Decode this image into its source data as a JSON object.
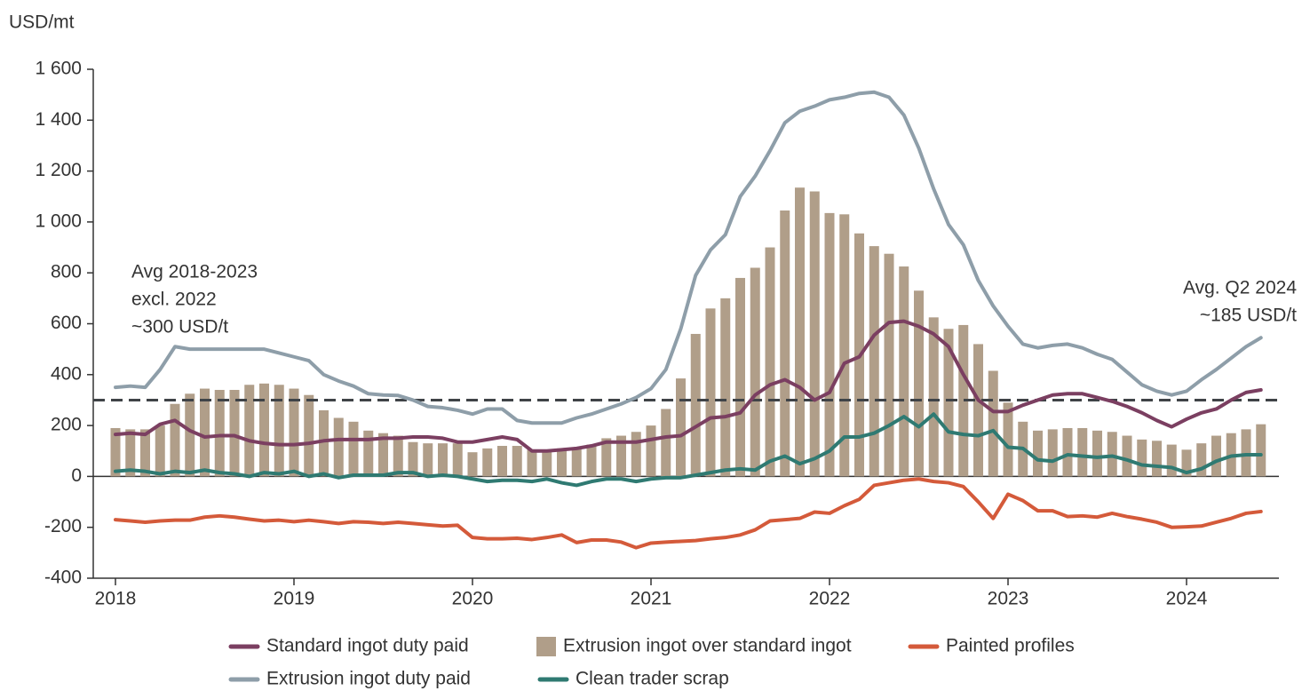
{
  "chart_data": {
    "type": "combo",
    "y_label": "USD/mt",
    "categories": [
      "2018",
      null,
      null,
      null,
      null,
      null,
      null,
      null,
      null,
      null,
      null,
      null,
      "2019",
      null,
      null,
      null,
      null,
      null,
      null,
      null,
      null,
      null,
      null,
      null,
      "2020",
      null,
      null,
      null,
      null,
      null,
      null,
      null,
      null,
      null,
      null,
      null,
      "2021",
      null,
      null,
      null,
      null,
      null,
      null,
      null,
      null,
      null,
      null,
      null,
      "2022",
      null,
      null,
      null,
      null,
      null,
      null,
      null,
      null,
      null,
      null,
      null,
      "2023",
      null,
      null,
      null,
      null,
      null,
      null,
      null,
      null,
      null,
      null,
      null,
      "2024",
      null,
      null,
      null,
      null,
      null
    ],
    "ylim": [
      -400,
      1600
    ],
    "yticks": [
      {
        "value": -400,
        "label": "-400"
      },
      -200,
      0,
      200,
      400,
      600,
      800,
      {
        "value": 1000,
        "label": "1 000"
      },
      {
        "value": 1200,
        "label": "1 200"
      },
      {
        "value": 1400,
        "label": "1 400"
      },
      {
        "value": 1600,
        "label": "1 600"
      }
    ],
    "reference_line": {
      "value": 300,
      "color": "#3f4347"
    },
    "annotations": [
      {
        "lines": [
          "Avg 2018-2023",
          "excl. 2022",
          "~300 USD/t"
        ]
      },
      {
        "lines": [
          "Avg. Q2 2024",
          "~185 USD/t"
        ]
      }
    ],
    "series": [
      {
        "name": "Standard ingot duty paid",
        "type": "line",
        "color": "#7b3f61",
        "values": [
          165,
          170,
          165,
          205,
          220,
          180,
          155,
          160,
          160,
          140,
          130,
          125,
          125,
          130,
          140,
          145,
          145,
          145,
          150,
          150,
          155,
          155,
          150,
          135,
          135,
          145,
          155,
          145,
          100,
          100,
          105,
          110,
          120,
          135,
          135,
          135,
          145,
          155,
          160,
          195,
          230,
          235,
          250,
          320,
          360,
          380,
          350,
          300,
          330,
          445,
          470,
          555,
          605,
          610,
          590,
          560,
          510,
          400,
          300,
          255,
          255,
          280,
          300,
          320,
          325,
          325,
          310,
          295,
          275,
          250,
          220,
          195,
          225,
          250,
          265,
          300,
          330,
          340
        ]
      },
      {
        "name": "Extrusion ingot over standard ingot",
        "type": "bar",
        "color": "#b09e89",
        "values": [
          190,
          185,
          185,
          200,
          285,
          325,
          345,
          340,
          340,
          360,
          365,
          360,
          345,
          320,
          260,
          230,
          215,
          180,
          170,
          160,
          135,
          130,
          130,
          130,
          95,
          110,
          120,
          120,
          105,
          100,
          110,
          110,
          125,
          150,
          160,
          175,
          200,
          265,
          385,
          560,
          660,
          700,
          780,
          820,
          900,
          1045,
          1135,
          1120,
          1035,
          1030,
          955,
          905,
          875,
          825,
          730,
          625,
          580,
          595,
          520,
          415,
          290,
          215,
          180,
          185,
          190,
          190,
          180,
          175,
          160,
          145,
          140,
          125,
          105,
          130,
          160,
          170,
          185,
          205
        ]
      },
      {
        "name": "Painted profiles",
        "type": "line",
        "color": "#d45a3a",
        "values": [
          -170,
          -175,
          -180,
          -175,
          -172,
          -172,
          -160,
          -155,
          -160,
          -168,
          -175,
          -172,
          -178,
          -172,
          -178,
          -185,
          -178,
          -180,
          -185,
          -180,
          -185,
          -190,
          -195,
          -192,
          -240,
          -245,
          -245,
          -243,
          -248,
          -240,
          -230,
          -260,
          -250,
          -250,
          -258,
          -280,
          -262,
          -258,
          -255,
          -252,
          -245,
          -240,
          -230,
          -210,
          -175,
          -170,
          -165,
          -140,
          -145,
          -115,
          -90,
          -35,
          -25,
          -15,
          -10,
          -20,
          -25,
          -40,
          -100,
          -165,
          -70,
          -95,
          -135,
          -135,
          -158,
          -155,
          -160,
          -145,
          -158,
          -168,
          -180,
          -200,
          -198,
          -195,
          -180,
          -165,
          -145,
          -138
        ]
      },
      {
        "name": "Extrusion ingot duty paid",
        "type": "line",
        "color": "#8e9ea9",
        "values": [
          350,
          355,
          350,
          420,
          510,
          500,
          500,
          500,
          500,
          500,
          500,
          485,
          470,
          455,
          400,
          375,
          355,
          325,
          320,
          318,
          300,
          275,
          270,
          260,
          245,
          265,
          265,
          220,
          210,
          210,
          210,
          230,
          245,
          265,
          285,
          310,
          345,
          420,
          580,
          790,
          890,
          950,
          1100,
          1180,
          1280,
          1390,
          1435,
          1455,
          1480,
          1490,
          1505,
          1510,
          1490,
          1420,
          1290,
          1130,
          990,
          910,
          770,
          670,
          590,
          520,
          505,
          515,
          520,
          505,
          480,
          460,
          410,
          360,
          335,
          320,
          335,
          380,
          420,
          465,
          510,
          545
        ]
      },
      {
        "name": "Clean trader scrap",
        "type": "line",
        "color": "#2f7a72",
        "values": [
          20,
          25,
          20,
          10,
          20,
          15,
          25,
          15,
          10,
          0,
          15,
          10,
          20,
          0,
          10,
          -5,
          5,
          5,
          5,
          15,
          15,
          0,
          5,
          0,
          -10,
          -20,
          -15,
          -15,
          -20,
          -10,
          -25,
          -35,
          -20,
          -10,
          -10,
          -20,
          -10,
          -5,
          -5,
          5,
          15,
          25,
          30,
          25,
          60,
          80,
          50,
          70,
          100,
          155,
          155,
          170,
          200,
          235,
          195,
          245,
          175,
          165,
          160,
          180,
          115,
          110,
          65,
          60,
          85,
          80,
          75,
          80,
          65,
          45,
          40,
          35,
          15,
          30,
          60,
          80,
          85,
          85
        ]
      }
    ]
  }
}
